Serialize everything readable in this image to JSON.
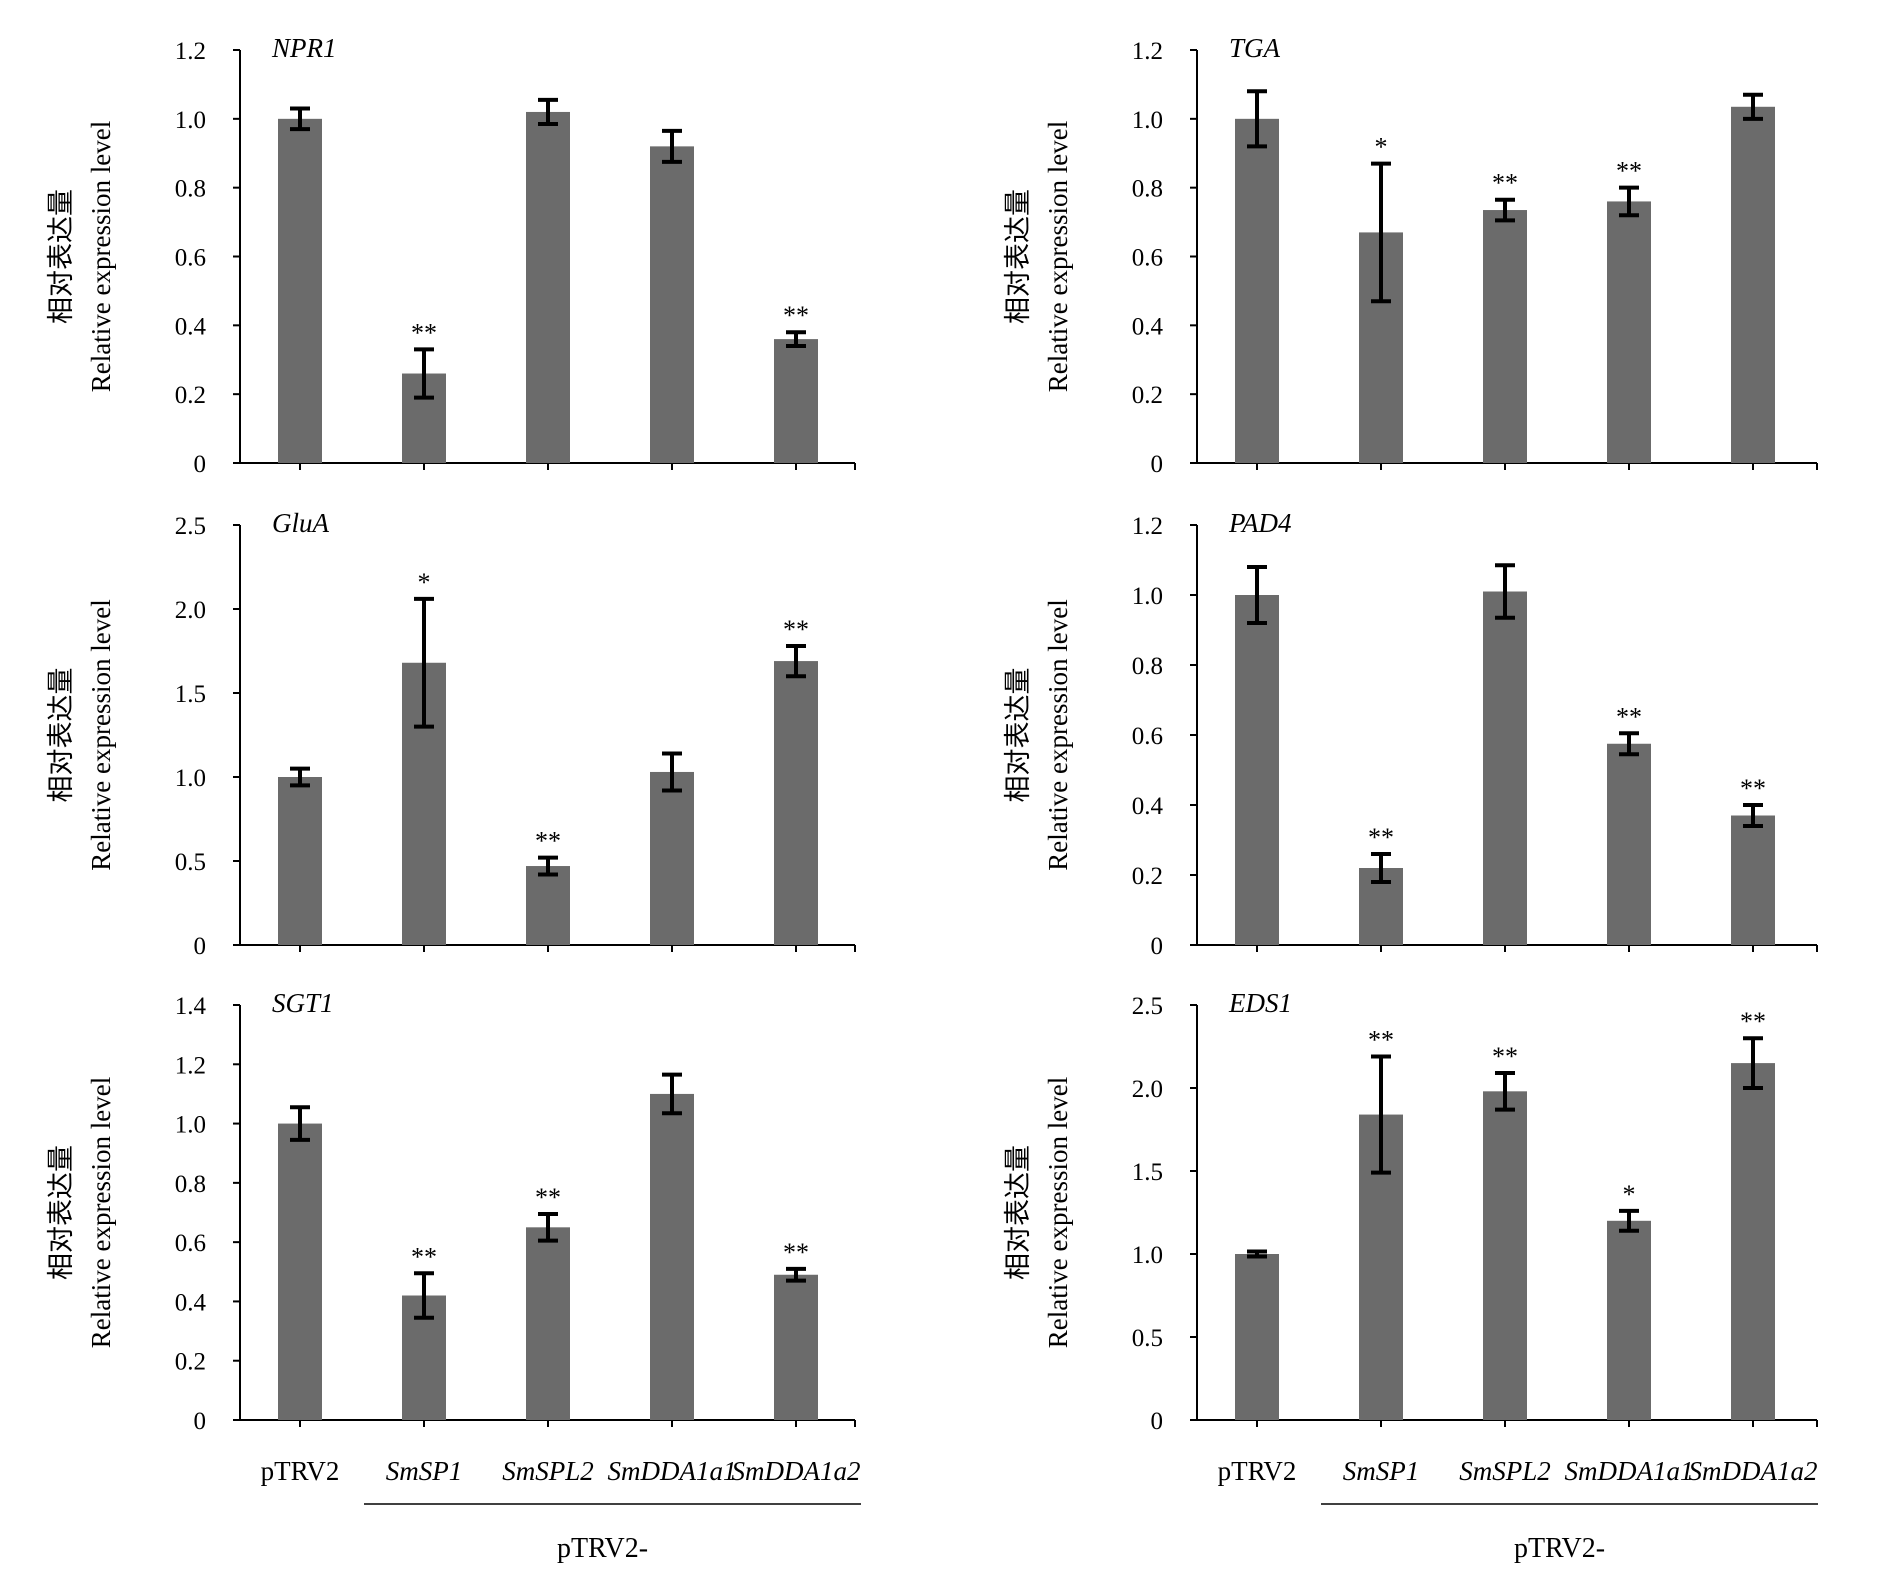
{
  "figure": {
    "ylabel_cn": "相对表达量",
    "ylabel_en": "Relative expression level",
    "categories": [
      "pTRV2",
      "SmSP1",
      "SmSPL2",
      "SmDDA1a1",
      "SmDDA1a2"
    ],
    "group_label": "pTRV2-",
    "bar_color": "#6b6b6b"
  },
  "chart_data": [
    {
      "type": "bar",
      "title": "NPR1",
      "categories": [
        "pTRV2",
        "SmSP1",
        "SmSPL2",
        "SmDDA1a1",
        "SmDDA1a2"
      ],
      "values": [
        1.0,
        0.26,
        1.02,
        0.92,
        0.36
      ],
      "errors": [
        0.03,
        0.07,
        0.035,
        0.045,
        0.02
      ],
      "significance": [
        "",
        "**",
        "",
        "",
        "**"
      ],
      "ylim": [
        0,
        1.2
      ],
      "yticks": [
        "0",
        "0.2",
        "0.4",
        "0.6",
        "0.8",
        "1.0",
        "1.2"
      ],
      "ylabel": "相对表达量 Relative expression level"
    },
    {
      "type": "bar",
      "title": "TGA",
      "categories": [
        "pTRV2",
        "SmSP1",
        "SmSPL2",
        "SmDDA1a1",
        "SmDDA1a2"
      ],
      "values": [
        1.0,
        0.67,
        0.735,
        0.76,
        1.035
      ],
      "errors": [
        0.08,
        0.2,
        0.03,
        0.04,
        0.035
      ],
      "significance": [
        "",
        "*",
        "**",
        "**",
        ""
      ],
      "ylim": [
        0,
        1.2
      ],
      "yticks": [
        "0",
        "0.2",
        "0.4",
        "0.6",
        "0.8",
        "1.0",
        "1.2"
      ],
      "ylabel": "相对表达量 Relative expression level"
    },
    {
      "type": "bar",
      "title": "GluA",
      "categories": [
        "pTRV2",
        "SmSP1",
        "SmSPL2",
        "SmDDA1a1",
        "SmDDA1a2"
      ],
      "values": [
        1.0,
        1.68,
        0.47,
        1.03,
        1.69
      ],
      "errors": [
        0.05,
        0.38,
        0.05,
        0.11,
        0.09
      ],
      "significance": [
        "",
        "*",
        "**",
        "",
        "**"
      ],
      "ylim": [
        0,
        2.5
      ],
      "yticks": [
        "0",
        "0.5",
        "1.0",
        "1.5",
        "2.0",
        "2.5"
      ],
      "ylabel": "相对表达量 Relative expression level"
    },
    {
      "type": "bar",
      "title": "PAD4",
      "categories": [
        "pTRV2",
        "SmSP1",
        "SmSPL2",
        "SmDDA1a1",
        "SmDDA1a2"
      ],
      "values": [
        1.0,
        0.22,
        1.01,
        0.575,
        0.37
      ],
      "errors": [
        0.08,
        0.04,
        0.075,
        0.03,
        0.03
      ],
      "significance": [
        "",
        "**",
        "",
        "**",
        "**"
      ],
      "ylim": [
        0,
        1.2
      ],
      "yticks": [
        "0",
        "0.2",
        "0.4",
        "0.6",
        "0.8",
        "1.0",
        "1.2"
      ],
      "ylabel": "相对表达量 Relative expression level"
    },
    {
      "type": "bar",
      "title": "SGT1",
      "categories": [
        "pTRV2",
        "SmSP1",
        "SmSPL2",
        "SmDDA1a1",
        "SmDDA1a2"
      ],
      "values": [
        1.0,
        0.42,
        0.65,
        1.1,
        0.49
      ],
      "errors": [
        0.055,
        0.075,
        0.045,
        0.065,
        0.02
      ],
      "significance": [
        "",
        "**",
        "**",
        "",
        "**"
      ],
      "ylim": [
        0,
        1.4
      ],
      "yticks": [
        "0",
        "0.2",
        "0.4",
        "0.6",
        "0.8",
        "1.0",
        "1.2",
        "1.4"
      ],
      "ylabel": "相对表达量 Relative expression level"
    },
    {
      "type": "bar",
      "title": "EDS1",
      "categories": [
        "pTRV2",
        "SmSP1",
        "SmSPL2",
        "SmDDA1a1",
        "SmDDA1a2"
      ],
      "values": [
        1.0,
        1.84,
        1.98,
        1.2,
        2.15
      ],
      "errors": [
        0.015,
        0.35,
        0.11,
        0.06,
        0.15
      ],
      "significance": [
        "",
        "**",
        "**",
        "*",
        "**"
      ],
      "ylim": [
        0,
        2.5
      ],
      "yticks": [
        "0",
        "0.5",
        "1.0",
        "1.5",
        "2.0",
        "2.5"
      ],
      "ylabel": "相对表达量 Relative expression level"
    }
  ]
}
